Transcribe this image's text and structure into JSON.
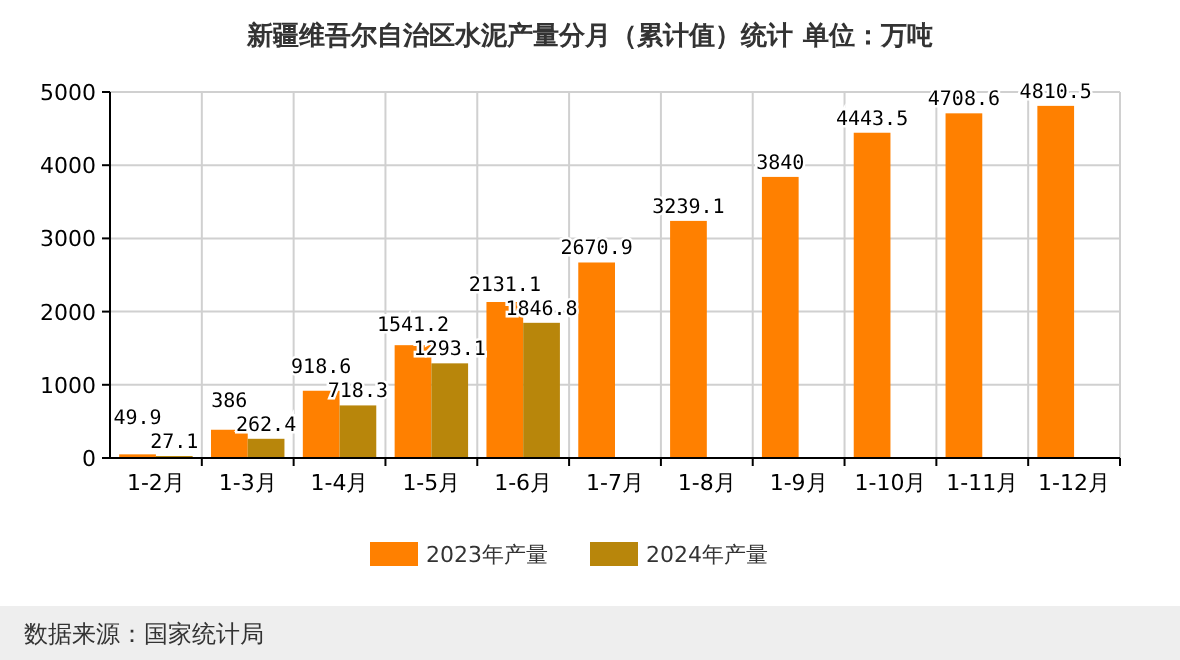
{
  "chart_data": {
    "type": "bar",
    "title": "新疆维吾尔自治区水泥产量分月（累计值）统计  单位：万吨",
    "categories": [
      "1-2月",
      "1-3月",
      "1-4月",
      "1-5月",
      "1-6月",
      "1-7月",
      "1-8月",
      "1-9月",
      "1-10月",
      "1-11月",
      "1-12月"
    ],
    "series": [
      {
        "name": "2023年产量",
        "color": "#ff8000",
        "values": [
          49.9,
          386,
          918.6,
          1541.2,
          2131.1,
          2670.9,
          3239.1,
          3840,
          4443.5,
          4708.6,
          4810.5
        ]
      },
      {
        "name": "2024年产量",
        "color": "#b8860b",
        "values": [
          27.1,
          262.4,
          718.3,
          1293.1,
          1846.8,
          null,
          null,
          null,
          null,
          null,
          null
        ]
      }
    ],
    "ylim": [
      0,
      5000
    ],
    "yticks": [
      0,
      1000,
      2000,
      3000,
      4000,
      5000
    ],
    "grid": true,
    "legend": "bottom",
    "data_labels": true,
    "annotations": [
      "数据来源：国家统计局"
    ]
  }
}
